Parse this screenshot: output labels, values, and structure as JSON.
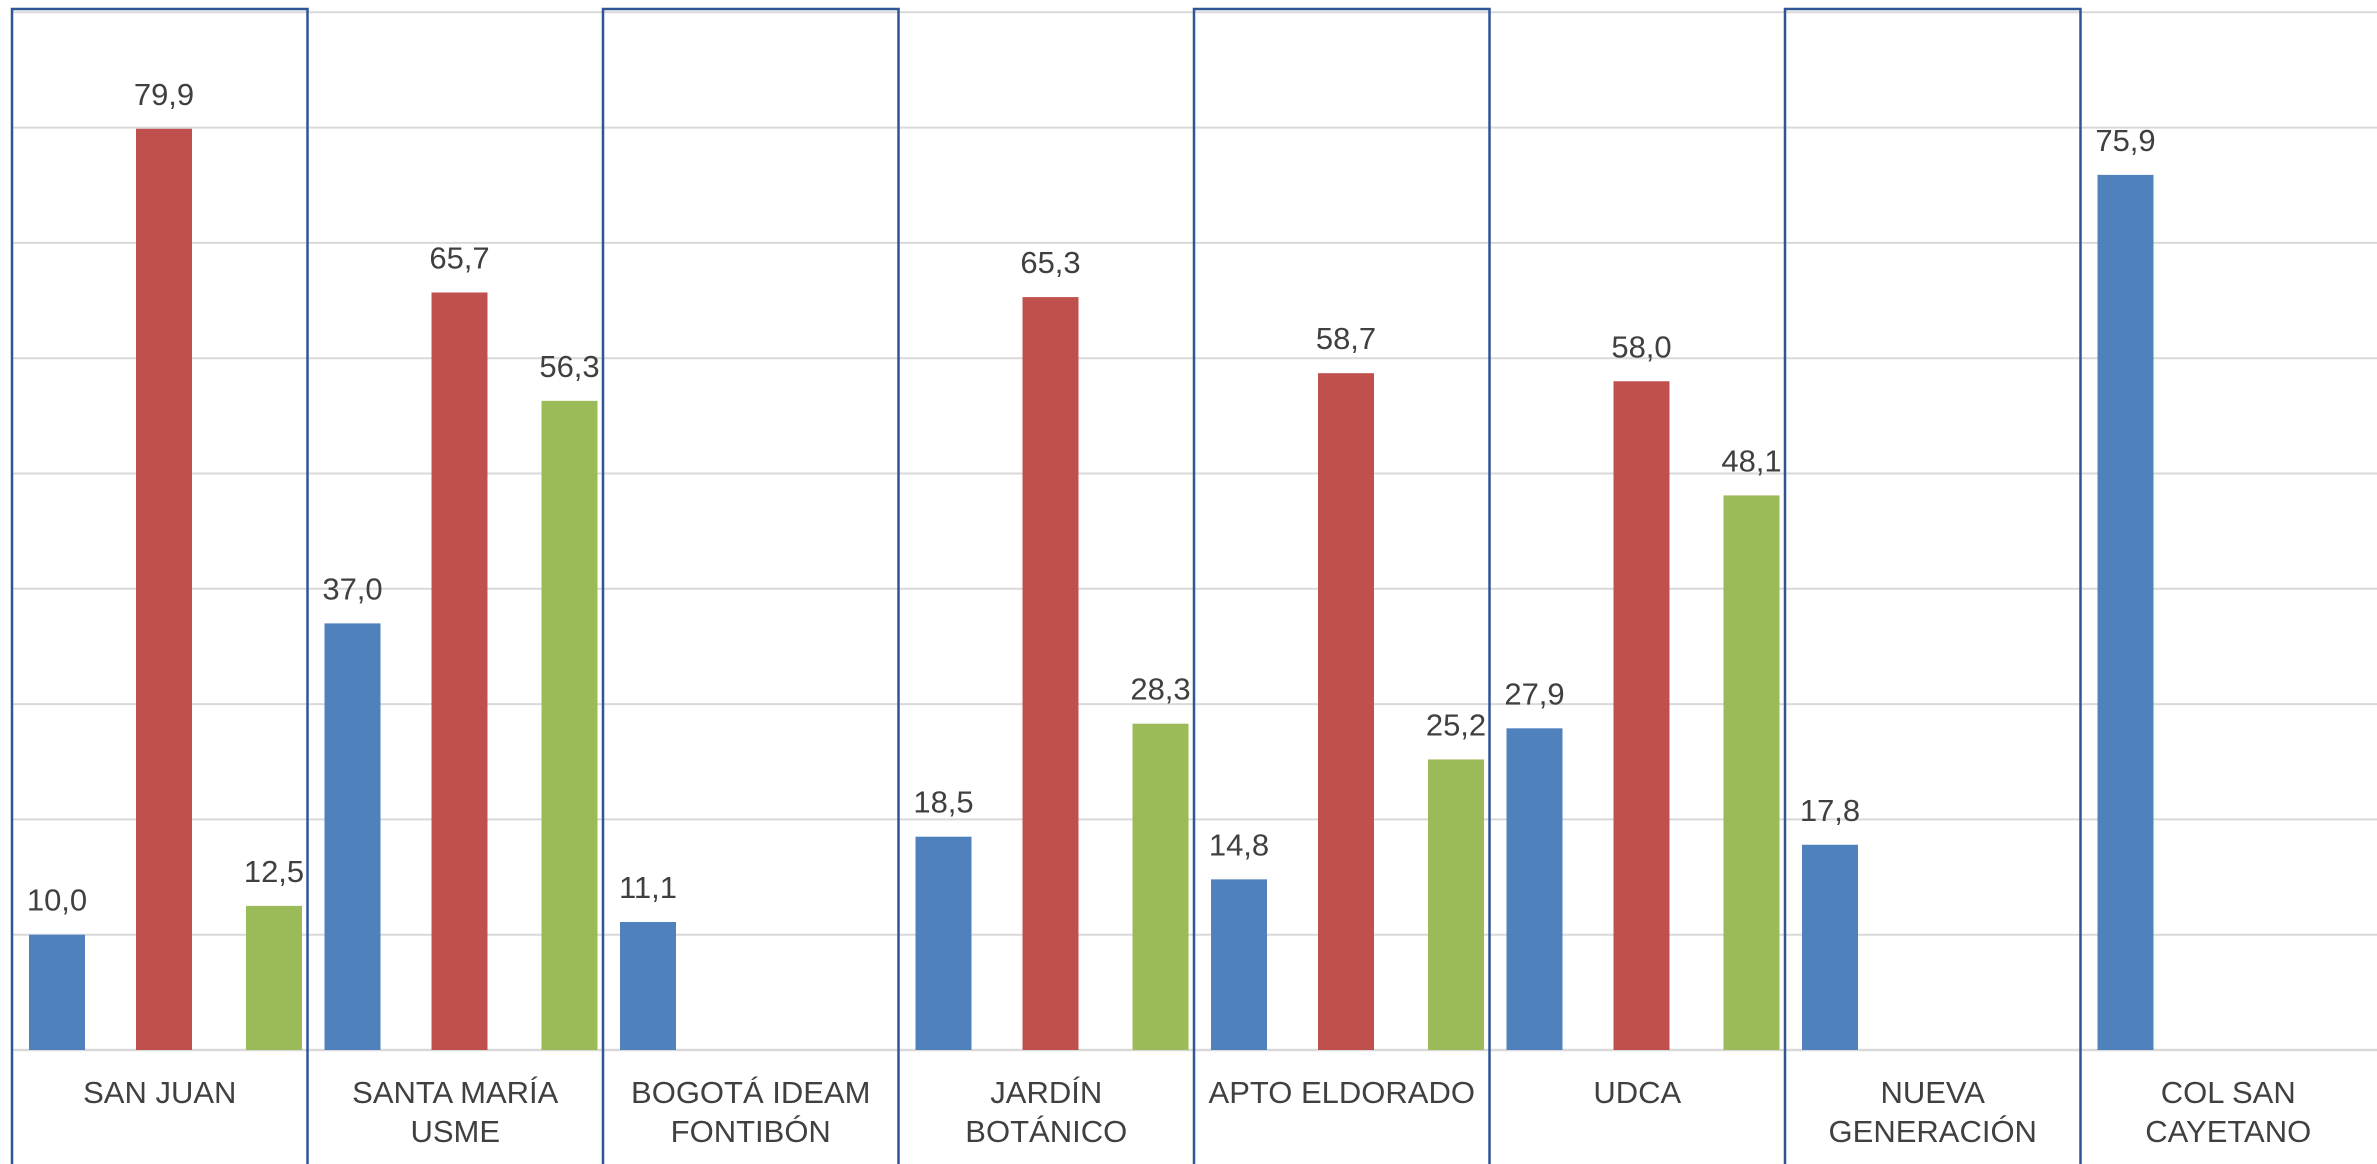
{
  "chart_data": {
    "type": "bar",
    "categories": [
      [
        "SAN JUAN"
      ],
      [
        "SANTA MARÍA",
        "USME"
      ],
      [
        "BOGOTÁ IDEAM",
        "FONTIBÓN"
      ],
      [
        "JARDÍN",
        "BOTÁNICO"
      ],
      [
        "APTO ELDORADO"
      ],
      [
        "UDCA"
      ],
      [
        "NUEVA",
        "GENERACIÓN"
      ],
      [
        "COL SAN",
        "CAYETANO"
      ]
    ],
    "series": [
      {
        "color": "#4F81BD",
        "values": [
          10.0,
          37.0,
          11.1,
          18.5,
          14.8,
          27.9,
          17.8,
          75.9
        ]
      },
      {
        "color": "#C0504D",
        "values": [
          79.9,
          65.7,
          null,
          65.3,
          58.7,
          58.0,
          null,
          null
        ]
      },
      {
        "color": "#9BBB59",
        "values": [
          12.5,
          56.3,
          null,
          28.3,
          25.2,
          48.1,
          null,
          null
        ]
      }
    ],
    "value_labels": [
      [
        "10,0",
        "37,0",
        "11,1",
        "18,5",
        "14,8",
        "27,9",
        "17,8",
        "75,9"
      ],
      [
        "79,9",
        "65,7",
        "",
        "65,3",
        "58,7",
        "58,0",
        "",
        ""
      ],
      [
        "12,5",
        "56,3",
        "",
        "28,3",
        "25,2",
        "48,1",
        "",
        ""
      ]
    ],
    "ylim": [
      0,
      90
    ],
    "grid": true,
    "highlighted_categories": [
      0,
      2,
      4,
      6
    ],
    "highlight_color": "#2F5597",
    "grid_color": "#D9D9D9",
    "title": "",
    "xlabel": "",
    "ylabel": ""
  }
}
